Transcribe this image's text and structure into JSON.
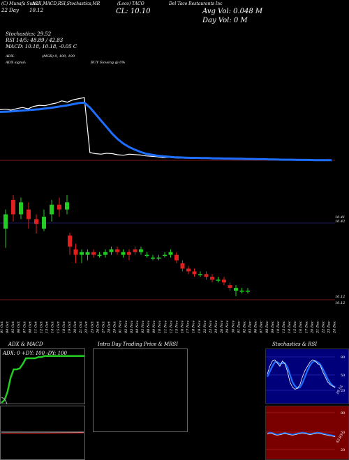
{
  "header": {
    "source": "(C) Munafa Sutra",
    "params": "ADX,MACD,RSI,Stochastics,MR",
    "ticker_line": "(Loco) TACO",
    "company": "Del Taco Restaurants Inc",
    "range": "22 Day",
    "close_short": "10.12",
    "cl_label": "CL: 10.10",
    "avg_vol": "Avg Vol: 0.048 M",
    "day_vol": "Day Vol: 0 M"
  },
  "indicators": {
    "stochastics": "Stochastics: 29.52",
    "rsi": "RSI 14/5: 48.89 / 42.83",
    "macd": "MACD: 10.18, 10.18, -0.05 C",
    "adx": "ADX:",
    "adx_vals": "(MGR) 0, 100, 100",
    "adx_signal": "ADX signal:",
    "buy_signal": "BUY Slowing @ 0%"
  },
  "price_labels": {
    "top1": "10.41",
    "top2": "10.42",
    "bottom1": "10.12",
    "bottom2": "10.12"
  },
  "panels": {
    "adx_macd_title": "ADX & MACD",
    "adx_readout": "ADX: 0   +DY: 100   -DY: 100",
    "intraday_title": "Intra Day Trading Price & MRSI",
    "stoch_title": "Stochastics & RSI",
    "stoch_ticks": [
      "80",
      "50",
      "20"
    ],
    "rsi_ticks": [
      "80",
      "50",
      "20"
    ],
    "stoch_val": "29.52",
    "rsi_val": "42.83"
  },
  "colors": {
    "ma_line": "#1e6fff",
    "price_line": "#ffffff",
    "up_candle": "#22cc22",
    "down_candle": "#e02020",
    "stoch_bg": "#00007a",
    "rsi_bg": "#7a0000",
    "adx_line": "#22cc22"
  },
  "chart_data": {
    "type": "line",
    "dates": [
      "01 Oct",
      "04 Oct",
      "05 Oct",
      "06 Oct",
      "07 Oct",
      "08 Oct",
      "11 Oct",
      "12 Oct",
      "13 Oct",
      "14 Oct",
      "15 Oct",
      "18 Oct",
      "19 Oct",
      "20 Oct",
      "21 Oct",
      "22 Oct",
      "25 Oct",
      "26 Oct",
      "27 Oct",
      "28 Oct",
      "29 Oct",
      "01 Nov",
      "02 Nov",
      "03 Nov",
      "04 Nov",
      "05 Nov",
      "08 Nov",
      "09 Nov",
      "10 Nov",
      "11 Nov",
      "12 Nov",
      "15 Nov",
      "16 Nov",
      "17 Nov",
      "18 Nov",
      "19 Nov",
      "22 Nov",
      "23 Nov",
      "24 Nov",
      "26 Nov",
      "29 Nov",
      "30 Nov",
      "01 Dec",
      "02 Dec",
      "03 Dec",
      "06 Dec",
      "07 Dec",
      "08 Dec",
      "09 Dec",
      "10 Dec",
      "13 Dec",
      "14 Dec",
      "15 Dec",
      "16 Dec",
      "17 Dec",
      "20 Dec",
      "21 Dec",
      "22 Dec",
      "23 Dec",
      "24 Dec"
    ],
    "series": [
      {
        "values": [
          12.4,
          12.42,
          12.38,
          12.45,
          12.5,
          12.44,
          12.55,
          12.6,
          12.58,
          12.65,
          12.7,
          12.8,
          12.74,
          12.85,
          12.9,
          12.95,
          10.45,
          10.4,
          10.38,
          10.42,
          10.4,
          10.35,
          10.33,
          10.38,
          10.36,
          10.34,
          10.3,
          10.28,
          10.26,
          10.22,
          10.24,
          10.21,
          10.2,
          10.22,
          10.21,
          10.2,
          10.19,
          10.18,
          10.2,
          10.19,
          10.18,
          10.17,
          10.16,
          10.17,
          10.16,
          10.15,
          10.14,
          10.15,
          10.14,
          10.13,
          10.12,
          10.12,
          10.13,
          10.12,
          10.11,
          10.12,
          10.11,
          10.12,
          10.12,
          10.1
        ]
      },
      {
        "values": [
          12.3,
          12.31,
          12.32,
          12.34,
          12.36,
          12.38,
          12.4,
          12.42,
          12.45,
          12.48,
          12.52,
          12.56,
          12.6,
          12.65,
          12.7,
          12.72,
          12.5,
          12.2,
          11.9,
          11.6,
          11.3,
          11.05,
          10.85,
          10.7,
          10.58,
          10.48,
          10.4,
          10.35,
          10.31,
          10.28,
          10.26,
          10.24,
          10.23,
          10.22,
          10.21,
          10.21,
          10.2,
          10.2,
          10.19,
          10.19,
          10.18,
          10.18,
          10.17,
          10.17,
          10.16,
          10.16,
          10.15,
          10.15,
          10.14,
          10.14,
          10.13,
          10.13,
          10.13,
          10.12,
          10.12,
          10.12,
          10.11,
          10.11,
          10.11,
          10.11
        ]
      }
    ],
    "candles_upper": [
      {
        "o": 10.3,
        "c": 10.36,
        "h": 10.38,
        "l": 10.22
      },
      {
        "o": 10.42,
        "c": 10.36,
        "h": 10.44,
        "l": 10.33
      },
      {
        "o": 10.36,
        "c": 10.41,
        "h": 10.43,
        "l": 10.34
      },
      {
        "o": 10.38,
        "c": 10.34,
        "h": 10.41,
        "l": 10.3
      },
      {
        "o": 10.34,
        "c": 10.32,
        "h": 10.36,
        "l": 10.28
      },
      {
        "o": 10.3,
        "c": 10.35,
        "h": 10.38,
        "l": 10.29
      },
      {
        "o": 10.36,
        "c": 10.4,
        "h": 10.42,
        "l": 10.33
      },
      {
        "o": 10.4,
        "c": 10.38,
        "h": 10.43,
        "l": 10.35
      },
      {
        "o": 10.38,
        "c": 10.41,
        "h": 10.44,
        "l": 10.36
      }
    ],
    "candles_lower": [
      {
        "o": 10.34,
        "c": 10.3,
        "h": 10.35,
        "l": 10.27
      },
      {
        "o": 10.29,
        "c": 10.27,
        "h": 10.31,
        "l": 10.24
      },
      {
        "o": 10.27,
        "c": 10.28,
        "h": 10.29,
        "l": 10.24
      },
      {
        "o": 10.27,
        "c": 10.28,
        "h": 10.29,
        "l": 10.25
      },
      {
        "o": 10.28,
        "c": 10.27,
        "h": 10.29,
        "l": 10.26
      },
      {
        "o": 10.27,
        "c": 10.27,
        "h": 10.28,
        "l": 10.26
      },
      {
        "o": 10.27,
        "c": 10.28,
        "h": 10.29,
        "l": 10.26
      },
      {
        "o": 10.28,
        "c": 10.29,
        "h": 10.3,
        "l": 10.27
      },
      {
        "o": 10.29,
        "c": 10.28,
        "h": 10.3,
        "l": 10.27
      },
      {
        "o": 10.27,
        "c": 10.28,
        "h": 10.29,
        "l": 10.26
      },
      {
        "o": 10.28,
        "c": 10.27,
        "h": 10.29,
        "l": 10.25
      },
      {
        "o": 10.29,
        "c": 10.28,
        "h": 10.3,
        "l": 10.27
      },
      {
        "o": 10.28,
        "c": 10.29,
        "h": 10.3,
        "l": 10.27
      },
      {
        "o": 10.27,
        "c": 10.27,
        "h": 10.28,
        "l": 10.26
      },
      {
        "o": 10.26,
        "c": 10.26,
        "h": 10.27,
        "l": 10.25
      },
      {
        "o": 10.26,
        "c": 10.26,
        "h": 10.27,
        "l": 10.25
      },
      {
        "o": 10.27,
        "c": 10.27,
        "h": 10.28,
        "l": 10.26
      },
      {
        "o": 10.27,
        "c": 10.28,
        "h": 10.29,
        "l": 10.26
      },
      {
        "o": 10.27,
        "c": 10.25,
        "h": 10.28,
        "l": 10.24
      },
      {
        "o": 10.24,
        "c": 10.22,
        "h": 10.25,
        "l": 10.21
      },
      {
        "o": 10.22,
        "c": 10.21,
        "h": 10.23,
        "l": 10.2
      },
      {
        "o": 10.21,
        "c": 10.2,
        "h": 10.22,
        "l": 10.19
      },
      {
        "o": 10.2,
        "c": 10.2,
        "h": 10.21,
        "l": 10.19
      },
      {
        "o": 10.2,
        "c": 10.19,
        "h": 10.21,
        "l": 10.18
      },
      {
        "o": 10.19,
        "c": 10.18,
        "h": 10.2,
        "l": 10.17
      },
      {
        "o": 10.18,
        "c": 10.18,
        "h": 10.19,
        "l": 10.17
      },
      {
        "o": 10.18,
        "c": 10.17,
        "h": 10.19,
        "l": 10.16
      },
      {
        "o": 10.16,
        "c": 10.15,
        "h": 10.17,
        "l": 10.14
      },
      {
        "o": 10.14,
        "c": 10.15,
        "h": 10.16,
        "l": 10.12
      },
      {
        "o": 10.14,
        "c": 10.14,
        "h": 10.15,
        "l": 10.13
      },
      {
        "o": 10.14,
        "c": 10.14,
        "h": 10.15,
        "l": 10.13
      }
    ],
    "stochastics": [
      55,
      70,
      80,
      82,
      76,
      70,
      80,
      75,
      60,
      40,
      30,
      26,
      28,
      35,
      50,
      62,
      70,
      78,
      82,
      80,
      75,
      72,
      60,
      50,
      40,
      35,
      32,
      29
    ],
    "stoch_slow": [
      50,
      60,
      70,
      78,
      78,
      74,
      76,
      76,
      68,
      54,
      40,
      32,
      28,
      30,
      38,
      50,
      62,
      72,
      78,
      80,
      78,
      74,
      66,
      56,
      46,
      38,
      33,
      30
    ],
    "rsi": [
      48,
      50,
      49,
      47,
      46,
      47,
      48,
      49,
      48,
      47,
      46,
      47,
      48,
      49,
      50,
      49,
      48,
      47,
      48,
      49,
      50,
      49,
      48,
      47,
      46,
      45,
      44,
      43
    ],
    "adx": [
      0,
      5,
      20,
      45,
      60,
      60,
      62,
      70,
      80,
      80,
      80,
      80,
      82,
      82,
      84,
      84,
      84,
      84,
      84,
      84,
      84,
      84,
      84,
      84,
      84,
      84,
      84,
      84
    ]
  }
}
